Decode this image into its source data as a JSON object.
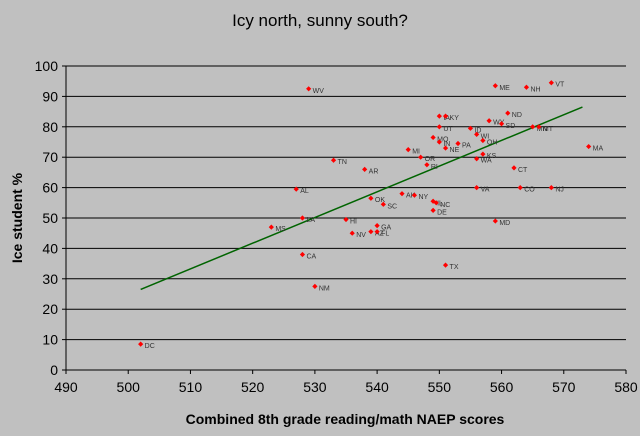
{
  "chart_data": {
    "type": "scatter",
    "title": "Icy north, sunny south?",
    "xlabel": "Combined 8th grade reading/math NAEP scores",
    "ylabel": "Ice student %",
    "xlim": [
      490,
      580
    ],
    "ylim": [
      0,
      100
    ],
    "xticks": [
      490,
      500,
      510,
      520,
      530,
      540,
      550,
      560,
      570,
      580
    ],
    "yticks": [
      0,
      10,
      20,
      30,
      40,
      50,
      60,
      70,
      80,
      90,
      100
    ],
    "grid": "horizontal",
    "marker_color": "#ff0000",
    "line_color": "#006400",
    "trendline": {
      "x": [
        502,
        573
      ],
      "y": [
        26.5,
        86.5
      ]
    },
    "points": [
      {
        "label": "DC",
        "x": 502,
        "y": 8.5
      },
      {
        "label": "MS",
        "x": 523,
        "y": 47
      },
      {
        "label": "AL",
        "x": 527,
        "y": 59.5
      },
      {
        "label": "LA",
        "x": 528,
        "y": 50
      },
      {
        "label": "CA",
        "x": 528,
        "y": 38
      },
      {
        "label": "WV",
        "x": 529,
        "y": 92.5
      },
      {
        "label": "NM",
        "x": 530,
        "y": 27.5
      },
      {
        "label": "TN",
        "x": 533,
        "y": 69
      },
      {
        "label": "HI",
        "x": 535,
        "y": 49.5
      },
      {
        "label": "NV",
        "x": 536,
        "y": 45
      },
      {
        "label": "AR",
        "x": 538,
        "y": 66
      },
      {
        "label": "OK",
        "x": 539,
        "y": 56.5
      },
      {
        "label": "AZ",
        "x": 539,
        "y": 45.5
      },
      {
        "label": "GA",
        "x": 540,
        "y": 47.5
      },
      {
        "label": "FL",
        "x": 540,
        "y": 45.5
      },
      {
        "label": "SC",
        "x": 541,
        "y": 54.5
      },
      {
        "label": "AK",
        "x": 544,
        "y": 58
      },
      {
        "label": "MI",
        "x": 545,
        "y": 72.5
      },
      {
        "label": "NY",
        "x": 546,
        "y": 57.5
      },
      {
        "label": "OR",
        "x": 547,
        "y": 70
      },
      {
        "label": "RI",
        "x": 548,
        "y": 67.5
      },
      {
        "label": "MO",
        "x": 549,
        "y": 76.5
      },
      {
        "label": "IL",
        "x": 549,
        "y": 55.5
      },
      {
        "label": "DE",
        "x": 549,
        "y": 52.5
      },
      {
        "label": "UT",
        "x": 550,
        "y": 80
      },
      {
        "label": "IN",
        "x": 550,
        "y": 75
      },
      {
        "label": "IA",
        "x": 550,
        "y": 83.5
      },
      {
        "label": "KY",
        "x": 551,
        "y": 83.5
      },
      {
        "label": "NE",
        "x": 551,
        "y": 73
      },
      {
        "label": "TX",
        "x": 551,
        "y": 34.5
      },
      {
        "label": "NC",
        "x": 549.5,
        "y": 55
      },
      {
        "label": "PA",
        "x": 553,
        "y": 74.5
      },
      {
        "label": "ID",
        "x": 555,
        "y": 79.5
      },
      {
        "label": "WI",
        "x": 556,
        "y": 77.5
      },
      {
        "label": "OH",
        "x": 557,
        "y": 75.5
      },
      {
        "label": "WA",
        "x": 556,
        "y": 69.5
      },
      {
        "label": "KS",
        "x": 557,
        "y": 71
      },
      {
        "label": "VA",
        "x": 556,
        "y": 60
      },
      {
        "label": "WY",
        "x": 558,
        "y": 82
      },
      {
        "label": "ME",
        "x": 559,
        "y": 93.5
      },
      {
        "label": "MD",
        "x": 559,
        "y": 49
      },
      {
        "label": "SD",
        "x": 560,
        "y": 81
      },
      {
        "label": "ND",
        "x": 561,
        "y": 84.5
      },
      {
        "label": "CT",
        "x": 562,
        "y": 66.5
      },
      {
        "label": "CO",
        "x": 563,
        "y": 60
      },
      {
        "label": "NH",
        "x": 564,
        "y": 93
      },
      {
        "label": "MN",
        "x": 565,
        "y": 80
      },
      {
        "label": "MT",
        "x": 566,
        "y": 80
      },
      {
        "label": "NJ",
        "x": 568,
        "y": 60
      },
      {
        "label": "VT",
        "x": 568,
        "y": 94.5
      },
      {
        "label": "MA",
        "x": 574,
        "y": 73.5
      }
    ]
  }
}
